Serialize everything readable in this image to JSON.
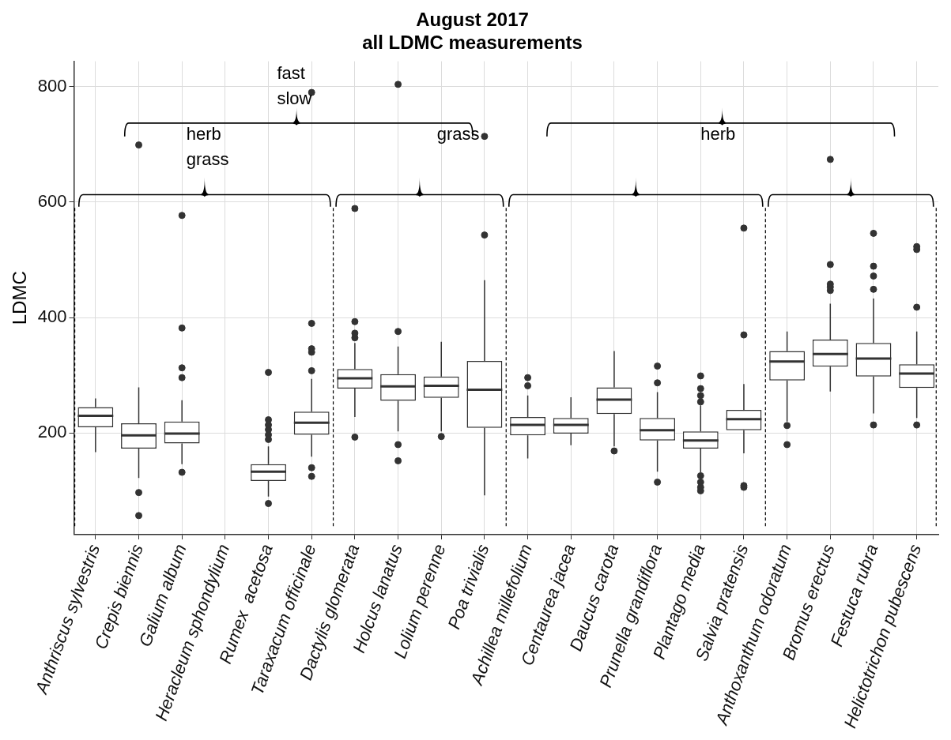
{
  "chart_data": {
    "type": "box",
    "title": "August 2017\nall LDMC measurements",
    "ylabel": "LDMC",
    "categories": [
      "Anthriscus sylvestris",
      "Crepis biennis",
      "Galium album",
      "Heracleum sphondylium",
      "Rumex  acetosa",
      "Taraxacum officinale",
      "Dactylis glomerata",
      "Holcus lanatus",
      "Lolium perenne",
      "Poa trivialis",
      "Achillea millefolium",
      "Centaurea jacea",
      "Daucus carota",
      "Prunella grandiflora",
      "Plantago media",
      "Salvia pratensis",
      "Anthoxanthum odoratum",
      "Bromus erectus",
      "Festuca rubra",
      "Helictotrichon pubescens"
    ],
    "color": "#333333",
    "boxes": [
      {
        "low": 167,
        "q1": 210,
        "median": 230,
        "q3": 245,
        "high": 260
      },
      {
        "low": 122,
        "q1": 173,
        "median": 196,
        "q3": 217,
        "high": 279,
        "outliers": [
          97,
          57,
          699
        ]
      },
      {
        "low": 146,
        "q1": 182,
        "median": 199,
        "q3": 220,
        "high": 257,
        "outliers": [
          132,
          296,
          313,
          382,
          577
        ]
      },
      null,
      {
        "low": 90,
        "q1": 117,
        "median": 133,
        "q3": 146,
        "high": 177,
        "outliers": [
          78,
          189,
          197,
          206,
          214,
          223,
          305
        ]
      },
      {
        "low": 159,
        "q1": 197,
        "median": 218,
        "q3": 237,
        "high": 294,
        "outliers": [
          125,
          140,
          308,
          340,
          346,
          390,
          790
        ]
      },
      {
        "low": 228,
        "q1": 277,
        "median": 295,
        "q3": 311,
        "high": 356,
        "outliers": [
          193,
          365,
          373,
          393,
          589
        ]
      },
      {
        "low": 203,
        "q1": 256,
        "median": 281,
        "q3": 302,
        "high": 350,
        "outliers": [
          152,
          180,
          376,
          804
        ]
      },
      {
        "low": 203,
        "q1": 261,
        "median": 282,
        "q3": 298,
        "high": 358,
        "outliers": [
          194
        ]
      },
      {
        "low": 92,
        "q1": 209,
        "median": 275,
        "q3": 325,
        "high": 465,
        "outliers": [
          543,
          714
        ]
      },
      {
        "low": 156,
        "q1": 196,
        "median": 214,
        "q3": 228,
        "high": 265,
        "outliers": [
          282,
          296
        ]
      },
      {
        "low": 179,
        "q1": 199,
        "median": 214,
        "q3": 226,
        "high": 262
      },
      {
        "low": 177,
        "q1": 233,
        "median": 258,
        "q3": 279,
        "high": 342,
        "outliers": [
          169
        ]
      },
      {
        "low": 133,
        "q1": 187,
        "median": 205,
        "q3": 226,
        "high": 271,
        "outliers": [
          115,
          287,
          316
        ]
      },
      {
        "low": 132,
        "q1": 173,
        "median": 187,
        "q3": 203,
        "high": 248,
        "outliers": [
          100,
          106,
          115,
          126,
          254,
          265,
          277,
          299
        ]
      },
      {
        "low": 165,
        "q1": 205,
        "median": 224,
        "q3": 240,
        "high": 285,
        "outliers": [
          106,
          109,
          370,
          555
        ]
      },
      {
        "low": 220,
        "q1": 291,
        "median": 324,
        "q3": 342,
        "high": 376,
        "outliers": [
          180,
          213
        ]
      },
      {
        "low": 272,
        "q1": 315,
        "median": 337,
        "q3": 362,
        "high": 424,
        "outliers": [
          447,
          453,
          458,
          492,
          674
        ]
      },
      {
        "low": 234,
        "q1": 298,
        "median": 329,
        "q3": 356,
        "high": 433,
        "outliers": [
          214,
          449,
          472,
          489,
          546
        ]
      },
      {
        "low": 226,
        "q1": 278,
        "median": 303,
        "q3": 319,
        "high": 376,
        "outliers": [
          214,
          418,
          518,
          523
        ]
      }
    ],
    "ylim": [
      24,
      844
    ],
    "yticks": [
      200,
      400,
      600,
      800
    ],
    "grid": true,
    "annotations": [
      "fast",
      "slow",
      "herb",
      "grass",
      "grass",
      "herb"
    ]
  }
}
